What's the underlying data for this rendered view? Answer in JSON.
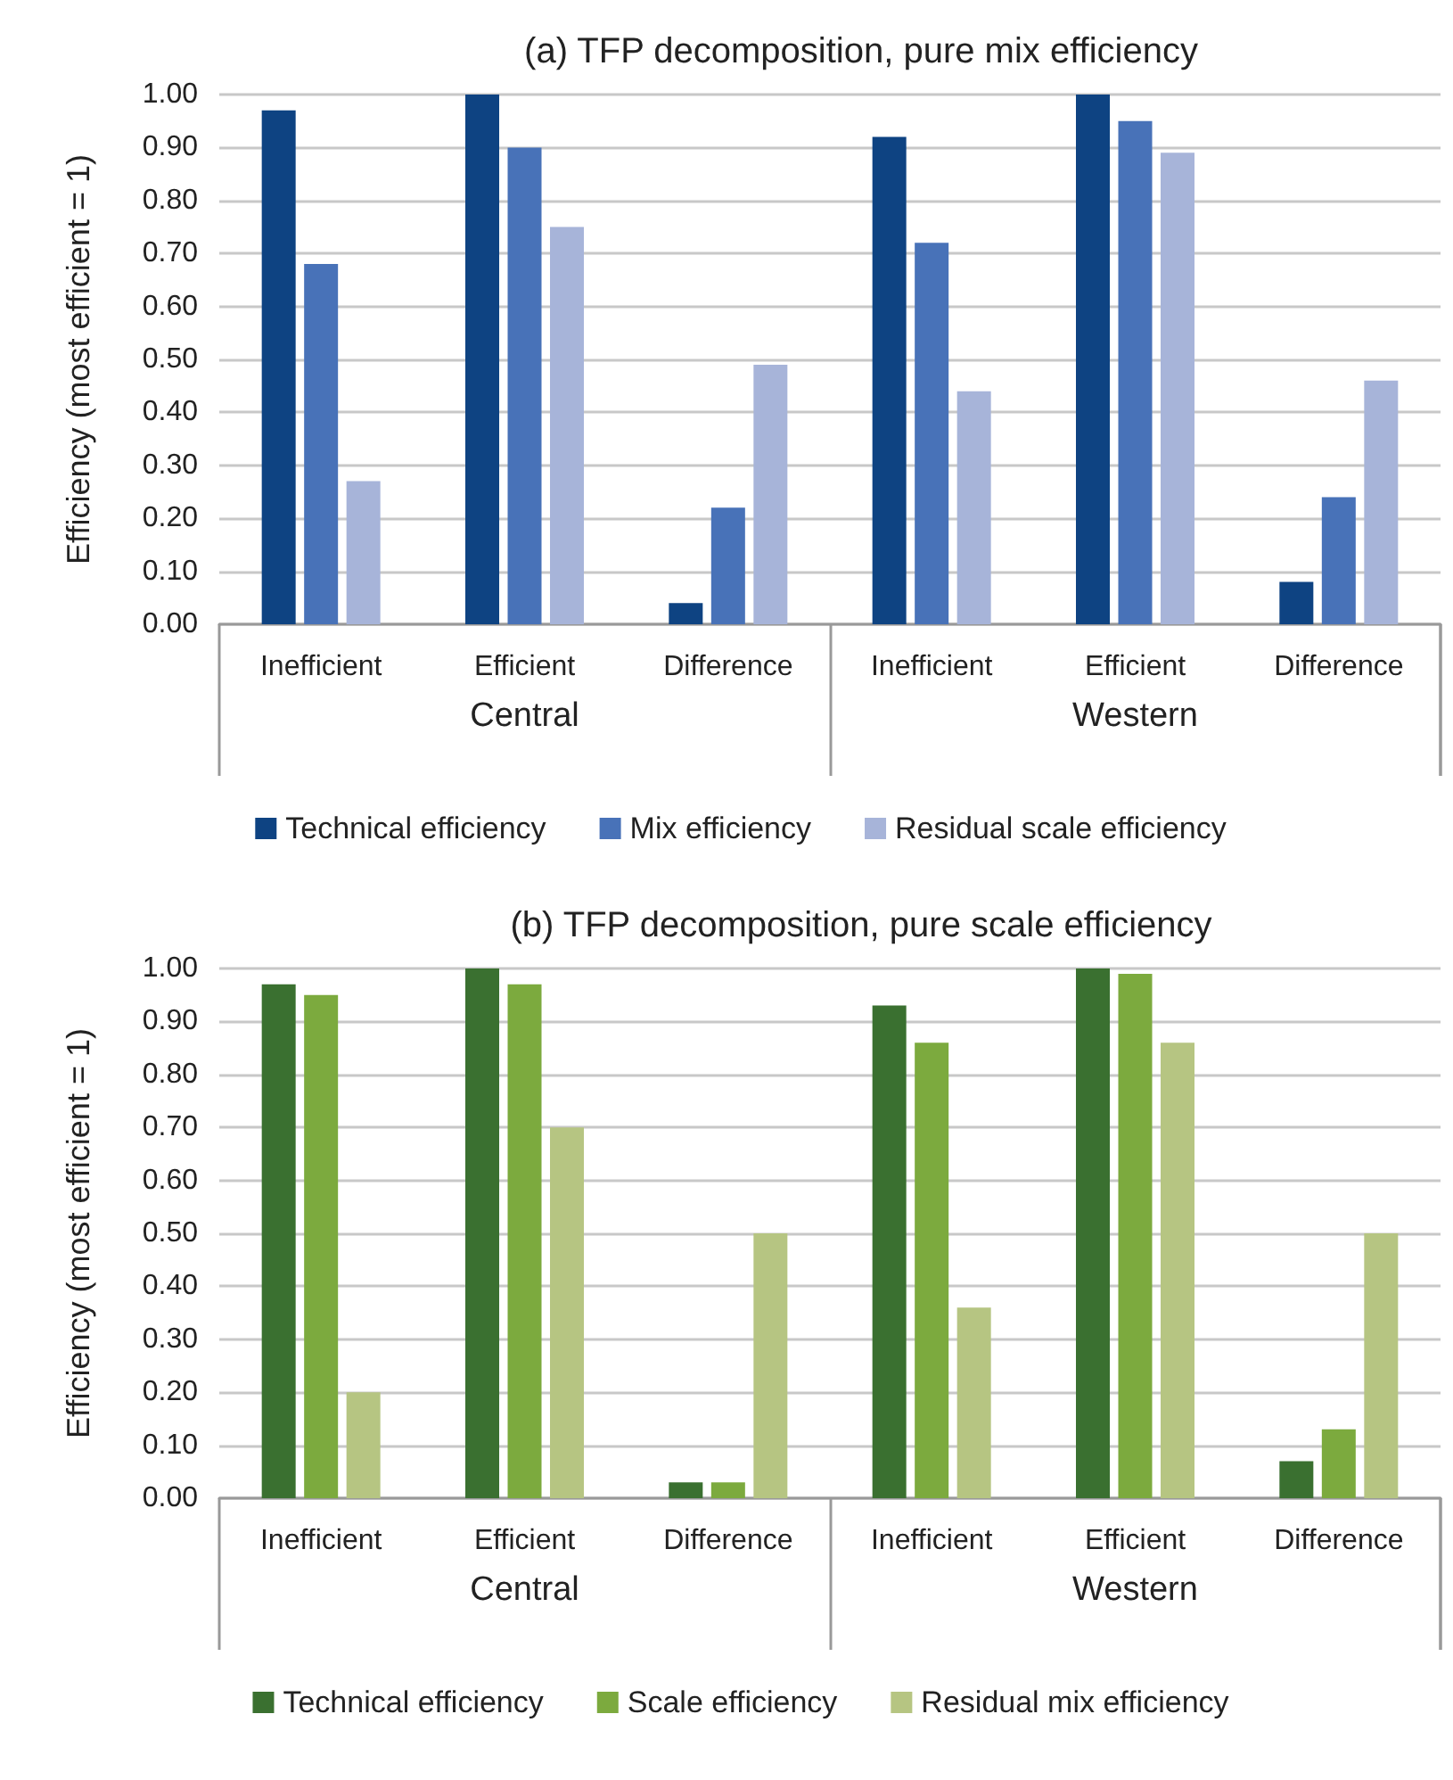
{
  "chart_data": [
    {
      "type": "bar",
      "title": "(a) TFP decomposition, pure mix efficiency",
      "ylabel": "Efficiency (most efficient = 1)",
      "categories": [
        "Inefficient",
        "Efficient",
        "Difference",
        "Inefficient",
        "Efficient",
        "Difference"
      ],
      "annotations": [
        "Central",
        "Western"
      ],
      "series": [
        {
          "name": "Technical efficiency",
          "color": "#0e4382",
          "values": [
            0.97,
            1.0,
            0.04,
            0.92,
            1.0,
            0.08
          ]
        },
        {
          "name": "Mix efficiency",
          "color": "#4872b8",
          "values": [
            0.68,
            0.9,
            0.22,
            0.72,
            0.95,
            0.24
          ]
        },
        {
          "name": "Residual scale efficiency",
          "color": "#a7b4d9",
          "values": [
            0.27,
            0.75,
            0.49,
            0.44,
            0.89,
            0.46
          ]
        }
      ],
      "ylim": [
        0,
        1
      ],
      "yticks": [
        {
          "value": 0,
          "label": "0.00"
        },
        {
          "value": 0.1,
          "label": "0.10"
        },
        {
          "value": 0.2,
          "label": "0.20"
        },
        {
          "value": 0.3,
          "label": "0.30"
        },
        {
          "value": 0.4,
          "label": "0.40"
        },
        {
          "value": 0.5,
          "label": "0.50"
        },
        {
          "value": 0.6,
          "label": "0.60"
        },
        {
          "value": 0.7,
          "label": "0.70"
        },
        {
          "value": 0.8,
          "label": "0.80"
        },
        {
          "value": 0.9,
          "label": "0.90"
        },
        {
          "value": 1,
          "label": "1.00"
        }
      ],
      "grid": "y",
      "legend": "bottom"
    },
    {
      "type": "bar",
      "title": "(b) TFP decomposition, pure scale efficiency",
      "ylabel": "Efficiency (most efficient = 1)",
      "categories": [
        "Inefficient",
        "Efficient",
        "Difference",
        "Inefficient",
        "Efficient",
        "Difference"
      ],
      "annotations": [
        "Central",
        "Western"
      ],
      "series": [
        {
          "name": "Technical efficiency",
          "color": "#3a7030",
          "values": [
            0.97,
            1.0,
            0.03,
            0.93,
            1.0,
            0.07
          ]
        },
        {
          "name": "Scale efficiency",
          "color": "#7caa3e",
          "values": [
            0.95,
            0.97,
            0.03,
            0.86,
            0.99,
            0.13
          ]
        },
        {
          "name": "Residual mix efficiency",
          "color": "#b6c582",
          "values": [
            0.2,
            0.7,
            0.5,
            0.36,
            0.86,
            0.5
          ]
        }
      ],
      "ylim": [
        0,
        1
      ],
      "yticks": [
        {
          "value": 0,
          "label": "0.00"
        },
        {
          "value": 0.1,
          "label": "0.10"
        },
        {
          "value": 0.2,
          "label": "0.20"
        },
        {
          "value": 0.3,
          "label": "0.30"
        },
        {
          "value": 0.4,
          "label": "0.40"
        },
        {
          "value": 0.5,
          "label": "0.50"
        },
        {
          "value": 0.6,
          "label": "0.60"
        },
        {
          "value": 0.7,
          "label": "0.70"
        },
        {
          "value": 0.8,
          "label": "0.80"
        },
        {
          "value": 0.9,
          "label": "0.90"
        },
        {
          "value": 1,
          "label": "1.00"
        }
      ],
      "grid": "y",
      "legend": "bottom"
    }
  ]
}
